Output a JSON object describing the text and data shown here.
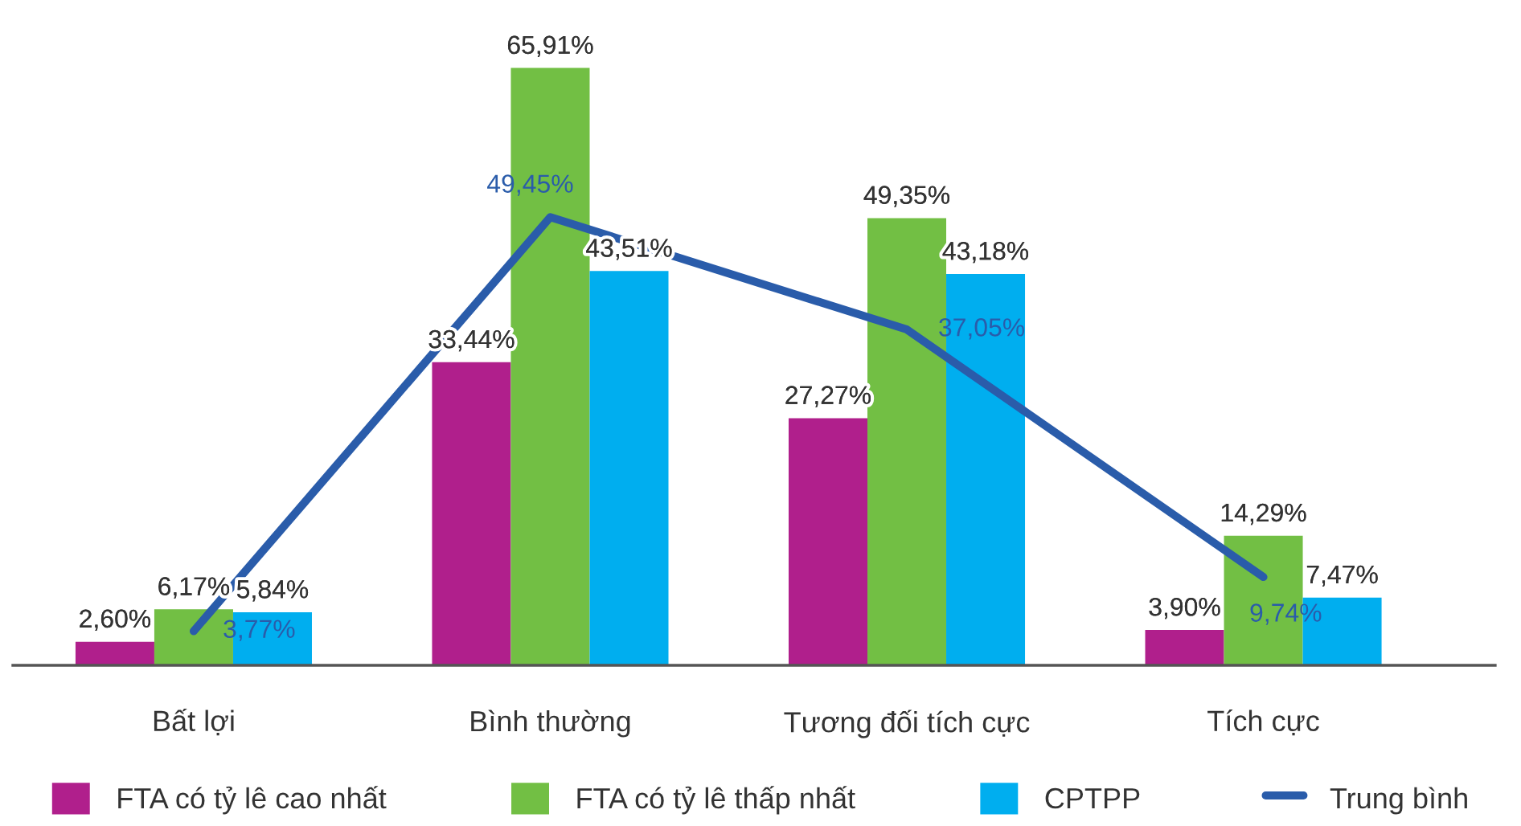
{
  "chart_data": {
    "type": "bar",
    "categories": [
      "Bất lợi",
      "Bình thường",
      "Tương đối tích cực",
      "Tích cực"
    ],
    "series": [
      {
        "name": "FTA có tỷ lê cao nhất",
        "color": "#b01f8c",
        "values": [
          2.6,
          33.44,
          27.27,
          3.9
        ],
        "value_labels": [
          "2,60%",
          "33,44%",
          "27,27%",
          "3,90%"
        ]
      },
      {
        "name": "FTA có tỷ lê thấp nhất",
        "color": "#72bf44",
        "values": [
          6.17,
          65.91,
          49.35,
          14.29
        ],
        "value_labels": [
          "6,17%",
          "65,91%",
          "49,35%",
          "14,29%"
        ]
      },
      {
        "name": "CPTPP",
        "color": "#00aeef",
        "values": [
          5.84,
          43.51,
          43.18,
          7.47
        ],
        "value_labels": [
          "5,84%",
          "43,51%",
          "43,18%",
          "7,47%"
        ]
      },
      {
        "name": "Trung bình",
        "type": "line",
        "color": "#2a5caa",
        "values": [
          3.77,
          49.45,
          37.05,
          9.74
        ],
        "value_labels": [
          "3,77%",
          "49,45%",
          "37,05%",
          "9,74%"
        ]
      }
    ],
    "legend": "bottom"
  }
}
